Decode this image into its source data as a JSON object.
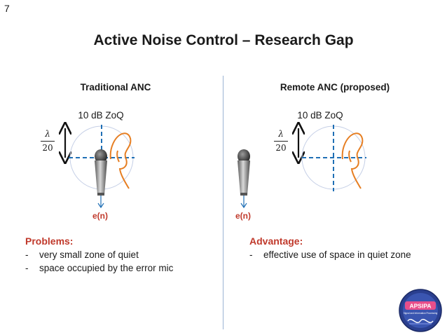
{
  "slide": {
    "number": "7",
    "title": "Active Noise Control – Research Gap"
  },
  "left": {
    "heading": "Traditional ANC",
    "zoq_label": "10 dB ZoQ",
    "lambda_num": "λ",
    "lambda_den": "20",
    "error_label": "e(n)"
  },
  "right": {
    "heading": "Remote ANC (proposed)",
    "zoq_label": "10 dB ZoQ",
    "lambda_num": "λ",
    "lambda_den": "20",
    "error_label": "e(n)"
  },
  "problems": {
    "heading": "Problems:",
    "items": [
      "very small zone of quiet",
      "space occupied by the error mic"
    ]
  },
  "advantage": {
    "heading": "Advantage:",
    "items": [
      "effective use of space in quiet zone"
    ]
  },
  "logo": {
    "text": "APSIPA",
    "subtitle": "Signal and Information Processing"
  },
  "colors": {
    "accent_red": "#c0392b",
    "dash_blue": "#1f6fb5",
    "ear_orange": "#e67e22",
    "divider": "#9bb3d4"
  }
}
